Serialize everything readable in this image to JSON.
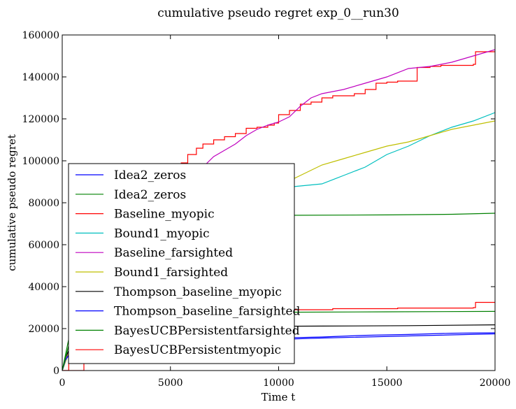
{
  "chart_data": {
    "type": "line",
    "title": "cumulative pseudo regret exp_0__run30",
    "xlabel": "Time t",
    "ylabel": "cumulative pseudo regret",
    "xlim": [
      0,
      20000
    ],
    "ylim": [
      0,
      160000
    ],
    "xticks": [
      0,
      5000,
      10000,
      15000,
      20000
    ],
    "xtick_labels": [
      "0",
      "5000",
      "10000",
      "15000",
      "20000"
    ],
    "yticks": [
      0,
      20000,
      40000,
      60000,
      80000,
      100000,
      120000,
      140000,
      160000
    ],
    "ytick_labels": [
      "0",
      "20000",
      "40000",
      "60000",
      "80000",
      "100000",
      "120000",
      "140000",
      "160000"
    ],
    "grid": false,
    "legend_position": "lower-left",
    "series": [
      {
        "name": "Idea2_zeros",
        "color": "#0000ff",
        "step": false,
        "points": [
          [
            0,
            0
          ],
          [
            150,
            5000
          ],
          [
            500,
            10000
          ],
          [
            1000,
            12000
          ],
          [
            2000,
            13000
          ],
          [
            4000,
            14000
          ],
          [
            6000,
            14500
          ],
          [
            8000,
            15000
          ],
          [
            10000,
            15500
          ],
          [
            12000,
            16000
          ],
          [
            14000,
            16800
          ],
          [
            16000,
            17200
          ],
          [
            18000,
            17800
          ],
          [
            20000,
            18000
          ]
        ]
      },
      {
        "name": "Idea2_zeros",
        "color": "#008000",
        "step": false,
        "points": [
          [
            0,
            0
          ],
          [
            400,
            20000
          ],
          [
            1000,
            30000
          ],
          [
            2000,
            45000
          ],
          [
            3000,
            55000
          ],
          [
            4000,
            62000
          ],
          [
            5000,
            67000
          ],
          [
            6000,
            70000
          ],
          [
            7000,
            72000
          ],
          [
            8000,
            73000
          ],
          [
            9000,
            73500
          ],
          [
            10000,
            74000
          ],
          [
            15000,
            74200
          ],
          [
            18000,
            74500
          ],
          [
            20000,
            75000
          ]
        ]
      },
      {
        "name": "Baseline_myopic",
        "color": "#ff0000",
        "step": true,
        "points": [
          [
            0,
            0
          ],
          [
            1000,
            30000
          ],
          [
            2000,
            45000
          ],
          [
            3000,
            60000
          ],
          [
            4000,
            75000
          ],
          [
            5000,
            90000
          ],
          [
            5500,
            99000
          ],
          [
            5800,
            103000
          ],
          [
            6200,
            106000
          ],
          [
            6500,
            108000
          ],
          [
            7000,
            110000
          ],
          [
            7500,
            111500
          ],
          [
            8000,
            113000
          ],
          [
            8500,
            115500
          ],
          [
            9000,
            116000
          ],
          [
            9500,
            117000
          ],
          [
            9800,
            118000
          ],
          [
            10000,
            122000
          ],
          [
            10500,
            124000
          ],
          [
            11000,
            127000
          ],
          [
            11500,
            128000
          ],
          [
            12000,
            130000
          ],
          [
            12500,
            131000
          ],
          [
            13500,
            132000
          ],
          [
            14000,
            134000
          ],
          [
            14500,
            137000
          ],
          [
            15000,
            137500
          ],
          [
            15500,
            138000
          ],
          [
            16400,
            144500
          ],
          [
            17000,
            145000
          ],
          [
            17500,
            145500
          ],
          [
            19000,
            146000
          ],
          [
            19100,
            152000
          ],
          [
            20000,
            152500
          ]
        ]
      },
      {
        "name": "Bound1_myopic",
        "color": "#00bfbf",
        "step": false,
        "points": [
          [
            0,
            0
          ],
          [
            1000,
            28000
          ],
          [
            2000,
            42000
          ],
          [
            3000,
            52000
          ],
          [
            4000,
            60000
          ],
          [
            5000,
            68000
          ],
          [
            6000,
            75000
          ],
          [
            7000,
            80000
          ],
          [
            8000,
            84000
          ],
          [
            9000,
            86000
          ],
          [
            10000,
            87000
          ],
          [
            11000,
            88000
          ],
          [
            12000,
            89000
          ],
          [
            13000,
            93000
          ],
          [
            14000,
            97000
          ],
          [
            15000,
            103000
          ],
          [
            16000,
            107000
          ],
          [
            17000,
            112000
          ],
          [
            18000,
            116000
          ],
          [
            19000,
            119000
          ],
          [
            20000,
            123000
          ]
        ]
      },
      {
        "name": "Baseline_farsighted",
        "color": "#bf00bf",
        "step": false,
        "points": [
          [
            0,
            0
          ],
          [
            1000,
            30000
          ],
          [
            2000,
            45000
          ],
          [
            3000,
            58000
          ],
          [
            4000,
            70000
          ],
          [
            5000,
            82000
          ],
          [
            6000,
            92000
          ],
          [
            6500,
            97000
          ],
          [
            7000,
            102000
          ],
          [
            7500,
            105000
          ],
          [
            8000,
            108000
          ],
          [
            8500,
            112000
          ],
          [
            9000,
            115000
          ],
          [
            9500,
            117000
          ],
          [
            10000,
            118500
          ],
          [
            10500,
            121000
          ],
          [
            11000,
            126000
          ],
          [
            11500,
            130000
          ],
          [
            12000,
            132000
          ],
          [
            13000,
            134000
          ],
          [
            14000,
            137000
          ],
          [
            15000,
            140000
          ],
          [
            16000,
            144000
          ],
          [
            17000,
            145000
          ],
          [
            18000,
            147000
          ],
          [
            19000,
            150000
          ],
          [
            20000,
            153000
          ]
        ]
      },
      {
        "name": "Bound1_farsighted",
        "color": "#bfbf00",
        "step": false,
        "points": [
          [
            0,
            0
          ],
          [
            1000,
            28000
          ],
          [
            2000,
            42000
          ],
          [
            3000,
            52000
          ],
          [
            4000,
            60000
          ],
          [
            5000,
            68000
          ],
          [
            6000,
            75000
          ],
          [
            7000,
            80000
          ],
          [
            8000,
            84000
          ],
          [
            9000,
            86000
          ],
          [
            10000,
            88000
          ],
          [
            11000,
            93000
          ],
          [
            12000,
            98000
          ],
          [
            13000,
            101000
          ],
          [
            14000,
            104000
          ],
          [
            15000,
            107000
          ],
          [
            16000,
            109000
          ],
          [
            17000,
            112000
          ],
          [
            18000,
            115000
          ],
          [
            19000,
            117000
          ],
          [
            20000,
            119000
          ]
        ]
      },
      {
        "name": "Thompson_baseline_myopic",
        "color": "#000000",
        "step": false,
        "points": [
          [
            0,
            0
          ],
          [
            150,
            6000
          ],
          [
            400,
            12000
          ],
          [
            1000,
            16000
          ],
          [
            2000,
            18000
          ],
          [
            3000,
            19500
          ],
          [
            5000,
            20500
          ],
          [
            8000,
            21000
          ],
          [
            12000,
            21200
          ],
          [
            16000,
            21400
          ],
          [
            20000,
            21800
          ]
        ]
      },
      {
        "name": "Thompson_baseline_farsighted",
        "color": "#0000ff",
        "step": false,
        "points": [
          [
            0,
            0
          ],
          [
            150,
            5000
          ],
          [
            400,
            9000
          ],
          [
            1000,
            11000
          ],
          [
            3000,
            12500
          ],
          [
            6000,
            13500
          ],
          [
            9000,
            14500
          ],
          [
            12000,
            15500
          ],
          [
            16000,
            16500
          ],
          [
            20000,
            17500
          ]
        ]
      },
      {
        "name": "BayesUCBPersistentfarsighted",
        "color": "#008000",
        "step": false,
        "points": [
          [
            0,
            0
          ],
          [
            300,
            12000
          ],
          [
            800,
            18000
          ],
          [
            1500,
            22000
          ],
          [
            3000,
            25000
          ],
          [
            6000,
            27000
          ],
          [
            10000,
            27800
          ],
          [
            15000,
            28000
          ],
          [
            20000,
            28200
          ]
        ]
      },
      {
        "name": "BayesUCBPersistentmyopic",
        "color": "#ff0000",
        "step": true,
        "points": [
          [
            0,
            0
          ],
          [
            300,
            13000
          ],
          [
            800,
            19000
          ],
          [
            1500,
            23000
          ],
          [
            3000,
            26000
          ],
          [
            6000,
            28000
          ],
          [
            10000,
            29000
          ],
          [
            12500,
            29500
          ],
          [
            15500,
            29800
          ],
          [
            19000,
            30000
          ],
          [
            19100,
            32500
          ],
          [
            20000,
            32500
          ]
        ]
      }
    ]
  }
}
